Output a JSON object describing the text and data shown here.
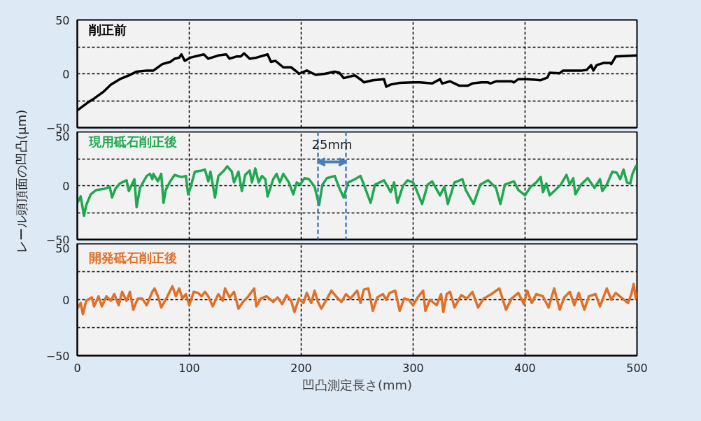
{
  "chart_data": [
    {
      "type": "line",
      "xlim": [
        0,
        500
      ],
      "xticks": [
        0,
        100,
        200,
        300,
        400,
        500
      ],
      "ylim": [
        -50,
        50
      ],
      "yticks": [
        {
          "value": -50,
          "label": "−50"
        },
        {
          "value": -25,
          "label": null
        },
        0,
        {
          "value": 25,
          "label": null
        },
        50
      ],
      "grid": true,
      "tick_labels": "y",
      "line_style": "solid",
      "marker": "none",
      "series": [
        {
          "name": "削正前",
          "color": "#000000",
          "x": [
            0,
            9,
            15,
            23,
            30,
            38,
            46,
            53,
            62,
            68,
            76,
            83,
            87,
            91,
            93,
            96,
            101,
            113,
            117,
            126,
            133,
            136,
            142,
            146,
            149,
            154,
            160,
            170,
            173,
            177,
            184,
            191,
            196,
            198,
            205,
            213,
            221,
            230,
            234,
            238,
            248,
            254,
            256,
            264,
            274,
            276,
            280,
            288,
            300,
            306,
            317,
            324,
            326,
            333,
            341,
            349,
            353,
            361,
            367,
            369,
            374,
            388,
            390,
            394,
            402,
            414,
            420,
            422,
            431,
            434,
            451,
            455,
            459,
            461,
            464,
            470,
            476,
            477,
            481,
            500
          ],
          "values": [
            -34,
            -27,
            -23,
            -17,
            -10,
            -5,
            -1.5,
            2,
            3,
            3,
            9,
            11,
            14,
            15,
            18,
            12,
            15,
            18,
            14,
            17,
            18,
            14,
            16,
            16,
            19,
            14,
            15,
            18,
            11,
            12,
            6,
            6,
            2,
            0,
            3,
            -1,
            0,
            2,
            1,
            -4,
            -1.5,
            -6,
            -8,
            -6,
            -5,
            -12,
            -10,
            -8.5,
            -8,
            -8,
            -9,
            -5,
            -9,
            -7,
            -11,
            -11,
            -9,
            -8,
            -8,
            -9,
            -7,
            -7,
            -8,
            -5,
            -5,
            -6,
            -3.5,
            1,
            0.5,
            3,
            3,
            3.5,
            8,
            3,
            8,
            10,
            10,
            9,
            16,
            17
          ]
        }
      ]
    },
    {
      "type": "line",
      "xlim": [
        0,
        500
      ],
      "xticks": [
        0,
        100,
        200,
        300,
        400,
        500
      ],
      "ylim": [
        -50,
        50
      ],
      "yticks": [
        {
          "value": -50,
          "label": "−50"
        },
        {
          "value": -25,
          "label": null
        },
        0,
        {
          "value": 25,
          "label": null
        },
        50
      ],
      "grid": true,
      "tick_labels": "y",
      "line_style": "solid",
      "marker": "none",
      "ylabel": "レール頭頂面の凹凸(μm)",
      "annotations": [
        "25mm"
      ],
      "ref_lines": [
        {
          "axis": "x",
          "value": 215,
          "label": null,
          "color": "#4a7ebb",
          "line_style": "dashed"
        },
        {
          "axis": "x",
          "value": 240,
          "label": null,
          "color": "#4a7ebb",
          "line_style": "dashed"
        }
      ],
      "series": [
        {
          "name": "現用砥石削正後",
          "color": "#1fa84f",
          "x": [
            0,
            3,
            6,
            8,
            12,
            17,
            24,
            29,
            31,
            34,
            38,
            44,
            46,
            51,
            53,
            56,
            62,
            65,
            67,
            68,
            72,
            75,
            77,
            79,
            83,
            87,
            93,
            97,
            99,
            101,
            105,
            111,
            114,
            117,
            119,
            123,
            126,
            131,
            134,
            138,
            140,
            144,
            147,
            150,
            154,
            156,
            159,
            162,
            165,
            168,
            170,
            175,
            178,
            181,
            184,
            189,
            193,
            196,
            199,
            203,
            207,
            212,
            216,
            219,
            223,
            230,
            234,
            238,
            242,
            248,
            253,
            256,
            262,
            266,
            274,
            280,
            283,
            286,
            291,
            295,
            300,
            303,
            308,
            313,
            317,
            324,
            328,
            331,
            337,
            344,
            347,
            354,
            360,
            367,
            374,
            378,
            382,
            390,
            394,
            400,
            405,
            410,
            414,
            416,
            419,
            422,
            427,
            432,
            437,
            440,
            443,
            445,
            450,
            456,
            462,
            467,
            469,
            473,
            478,
            482,
            485,
            488,
            491,
            494,
            496,
            499,
            500
          ],
          "values": [
            -16,
            -10,
            -28,
            -18,
            -8,
            -4,
            -3,
            -1,
            -11,
            -3,
            2,
            5,
            -5,
            6,
            -20,
            -2,
            9,
            11,
            6,
            11,
            4,
            11,
            -16,
            -4,
            4,
            10,
            8,
            9,
            -8,
            -2,
            13,
            14,
            15,
            4,
            13,
            -11,
            9,
            14,
            18,
            13,
            3,
            13,
            -5,
            10,
            14,
            3,
            16,
            3,
            9,
            6,
            -10,
            6,
            11,
            3,
            11,
            3,
            -8,
            3,
            1,
            7,
            6,
            -1,
            -18,
            1,
            7,
            9,
            -2,
            -11,
            3,
            6,
            9,
            1,
            -16,
            1,
            5,
            -6,
            3,
            -16,
            0,
            5,
            3,
            -4,
            -17,
            1,
            4,
            -9,
            -1,
            -17,
            3,
            6,
            -4,
            -17,
            1,
            5,
            -2,
            -17,
            1,
            4,
            -4,
            -9,
            -1,
            3,
            8,
            -6,
            2,
            -9,
            -4,
            1,
            10,
            1,
            7,
            -8,
            1,
            7,
            -2,
            6,
            -5,
            1,
            13,
            12,
            6,
            15,
            3,
            2,
            11,
            18,
            19
          ]
        }
      ]
    },
    {
      "type": "line",
      "xlim": [
        0,
        500
      ],
      "xticks": [
        0,
        100,
        200,
        300,
        400,
        500
      ],
      "ylim": [
        -50,
        50
      ],
      "yticks": [
        {
          "value": -50,
          "label": "−50"
        },
        {
          "value": -25,
          "label": null
        },
        0,
        {
          "value": 25,
          "label": null
        },
        50
      ],
      "grid": true,
      "line_style": "solid",
      "marker": "none",
      "xlabel": "凹凸測定長さ(mm)",
      "series": [
        {
          "name": "開発砥石削正後",
          "color": "#e07027",
          "x": [
            0,
            3,
            5,
            8,
            13,
            15,
            19,
            22,
            26,
            30,
            33,
            37,
            40,
            44,
            47,
            50,
            54,
            58,
            62,
            67,
            69,
            72,
            75,
            80,
            85,
            88,
            91,
            94,
            97,
            100,
            104,
            108,
            111,
            114,
            117,
            121,
            126,
            130,
            132,
            136,
            140,
            144,
            148,
            152,
            158,
            160,
            164,
            169,
            175,
            179,
            183,
            187,
            191,
            194,
            198,
            202,
            205,
            209,
            212,
            215,
            218,
            222,
            227,
            232,
            236,
            240,
            244,
            250,
            253,
            256,
            260,
            264,
            268,
            273,
            276,
            279,
            284,
            288,
            292,
            296,
            300,
            304,
            309,
            311,
            315,
            321,
            325,
            327,
            330,
            333,
            337,
            343,
            348,
            353,
            358,
            363,
            370,
            377,
            383,
            388,
            394,
            399,
            402,
            406,
            410,
            416,
            421,
            426,
            431,
            435,
            440,
            444,
            448,
            453,
            457,
            463,
            467,
            473,
            477,
            481,
            486,
            492,
            495,
            497,
            499,
            500
          ],
          "values": [
            -8,
            -3,
            -13,
            -1,
            2,
            -6,
            3,
            -6,
            3,
            -1,
            5,
            -5,
            7,
            -1,
            7,
            -9,
            1,
            1,
            -5,
            7,
            10,
            3,
            -7,
            2,
            12,
            3,
            10,
            1,
            5,
            -5,
            7,
            6,
            3,
            7,
            3,
            -6,
            5,
            -1,
            10,
            2,
            7,
            -8,
            -2,
            2,
            10,
            -6,
            1,
            3,
            -2,
            2,
            -4,
            4,
            -1,
            -11,
            1,
            -3,
            6,
            -3,
            8,
            -2,
            -8,
            -1,
            8,
            2,
            -2,
            5,
            1,
            8,
            -3,
            9,
            10,
            -10,
            2,
            5,
            0,
            6,
            8,
            -10,
            1,
            0,
            -5,
            2,
            8,
            -10,
            0,
            -5,
            5,
            -11,
            5,
            7,
            -7,
            4,
            1,
            7,
            -7,
            1,
            5,
            10,
            -9,
            1,
            6,
            -4,
            8,
            -3,
            5,
            3,
            -7,
            10,
            -9,
            2,
            7,
            -5,
            6,
            -9,
            3,
            5,
            -6,
            10,
            0,
            6,
            2,
            -3,
            5,
            14,
            1,
            7
          ]
        }
      ]
    }
  ]
}
